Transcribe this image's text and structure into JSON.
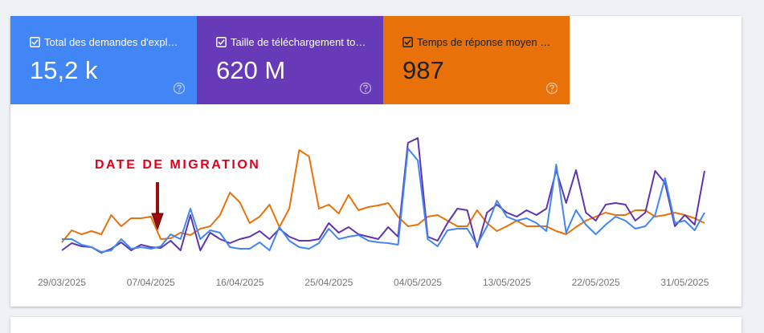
{
  "chart_data": {
    "type": "line",
    "annotation": "DATE DE MIGRATION",
    "categories": [
      "29/03/2025",
      null,
      null,
      null,
      null,
      null,
      null,
      null,
      null,
      "07/04/2025",
      null,
      null,
      null,
      null,
      null,
      null,
      null,
      null,
      "16/04/2025",
      null,
      null,
      null,
      null,
      null,
      null,
      null,
      null,
      "25/04/2025",
      null,
      null,
      null,
      null,
      null,
      null,
      null,
      null,
      "04/05/2025",
      null,
      null,
      null,
      null,
      null,
      null,
      null,
      null,
      "13/05/2025",
      null,
      null,
      null,
      null,
      null,
      null,
      null,
      null,
      "22/05/2025",
      null,
      null,
      null,
      null,
      null,
      null,
      null,
      null,
      "31/05/2025",
      null,
      null
    ],
    "ylim": [
      0,
      160
    ],
    "series": [
      {
        "name": "Total des demandes d'expl…",
        "total": "15,2 k",
        "color": "#4285f4",
        "values": [
          32,
          32,
          25,
          22,
          16,
          18,
          32,
          20,
          22,
          20,
          23,
          38,
          32,
          70,
          32,
          43,
          40,
          22,
          20,
          20,
          28,
          18,
          47,
          30,
          22,
          20,
          27,
          45,
          32,
          35,
          37,
          30,
          28,
          27,
          25,
          145,
          130,
          32,
          23,
          43,
          45,
          45,
          25,
          48,
          80,
          60,
          55,
          58,
          52,
          42,
          125,
          40,
          68,
          50,
          38,
          50,
          60,
          55,
          45,
          48,
          62,
          108,
          52,
          55,
          43,
          65
        ]
      },
      {
        "name": "Taille de téléchargement to…",
        "total": "620 M",
        "color": "#5e35b1",
        "values": [
          18,
          27,
          23,
          22,
          15,
          20,
          28,
          18,
          25,
          22,
          21,
          30,
          18,
          62,
          18,
          40,
          32,
          27,
          32,
          35,
          42,
          32,
          45,
          35,
          30,
          30,
          32,
          52,
          40,
          47,
          38,
          35,
          32,
          47,
          35,
          152,
          158,
          35,
          30,
          52,
          70,
          68,
          22,
          65,
          75,
          65,
          60,
          68,
          62,
          70,
          118,
          77,
          118,
          65,
          55,
          75,
          77,
          75,
          55,
          65,
          117,
          102,
          48,
          62,
          50,
          117
        ]
      },
      {
        "name": "Temps de réponse moyen …",
        "total": "987",
        "color": "#e8710a",
        "values": [
          28,
          43,
          38,
          42,
          38,
          62,
          48,
          58,
          58,
          60,
          32,
          33,
          40,
          37,
          45,
          48,
          62,
          90,
          78,
          52,
          60,
          75,
          47,
          70,
          143,
          135,
          70,
          75,
          64,
          87,
          68,
          72,
          74,
          77,
          60,
          48,
          50,
          60,
          62,
          55,
          48,
          48,
          68,
          52,
          42,
          48,
          55,
          48,
          48,
          48,
          42,
          38,
          47,
          55,
          60,
          65,
          62,
          62,
          68,
          68,
          60,
          62,
          65,
          62,
          58,
          52
        ]
      }
    ]
  }
}
